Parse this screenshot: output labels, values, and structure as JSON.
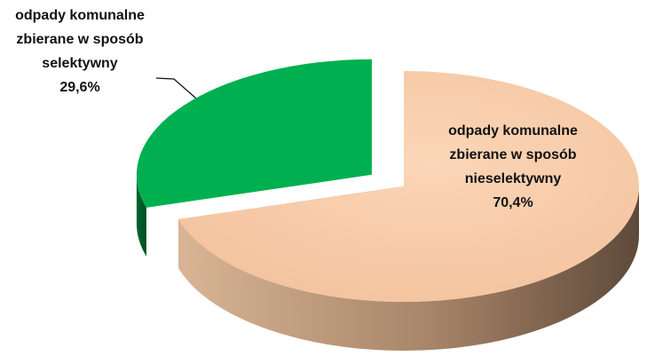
{
  "chart_data": {
    "type": "pie3d",
    "categories": [
      [
        "odpady komunalne",
        "zbierane w sposób",
        "nieselektywny"
      ],
      [
        "odpady komunalne",
        "zbierane w sposób",
        "selektywny"
      ]
    ],
    "values": [
      70.4,
      29.6
    ],
    "value_labels": [
      "70,4%",
      "29,6%"
    ],
    "colors": [
      "#f8ccaa",
      "#00b050"
    ]
  }
}
